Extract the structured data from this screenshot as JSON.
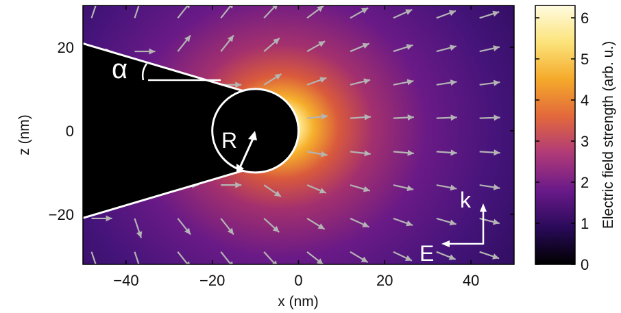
{
  "chart_data": {
    "type": "heatmap",
    "title": "",
    "xlabel": "x (nm)",
    "ylabel": "z (nm)",
    "xlim": [
      -50,
      50
    ],
    "ylim": [
      -32,
      30
    ],
    "xticks": [
      -40,
      -20,
      0,
      20,
      40
    ],
    "yticks": [
      -20,
      0,
      20
    ],
    "xtick_labels": [
      "−40",
      "−20",
      "0",
      "20",
      "40"
    ],
    "ytick_labels": [
      "−20",
      "0",
      "20"
    ],
    "colorbar": {
      "label": "Electric field strength (arb. u.)",
      "range": [
        0,
        6.3
      ],
      "ticks": [
        0,
        1,
        2,
        3,
        4,
        5,
        6
      ],
      "tick_labels": [
        "0",
        "1",
        "2",
        "3",
        "4",
        "5",
        "6"
      ],
      "colormap": [
        "#000000",
        "#2a0a5a",
        "#6a1a8a",
        "#b03a78",
        "#e2683c",
        "#f5a92a",
        "#fbe37a",
        "#fffbe0"
      ]
    },
    "tip": {
      "apex_center": [
        -10,
        0
      ],
      "radius_R": 10,
      "half_angle_alpha_deg": 17,
      "color": "#000000",
      "outline_color": "#ffffff"
    },
    "field_arrows": {
      "color": "#b4b4b4",
      "grid_x": [
        -48,
        -38,
        -28,
        -18,
        -8,
        2,
        12,
        22,
        32,
        42
      ],
      "grid_z": [
        27,
        19,
        11,
        3,
        -5,
        -13,
        -21,
        -29
      ]
    },
    "annotations": {
      "alpha": "α",
      "radius": "R",
      "k_vector": "k",
      "e_vector": "E"
    }
  }
}
